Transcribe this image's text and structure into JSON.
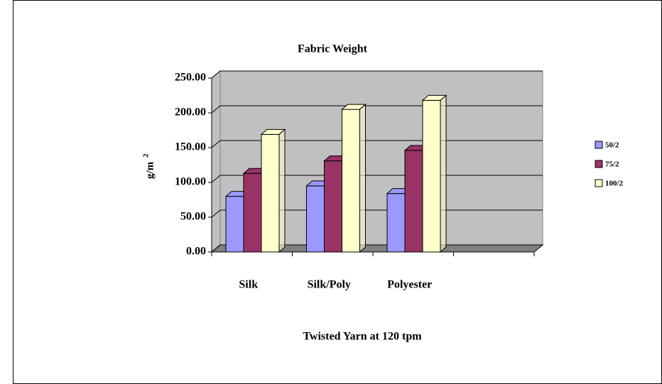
{
  "chart_data": {
    "type": "bar3d",
    "title": "Fabric Weight",
    "x_label": "Twisted Yarn at 120 tpm",
    "y_label": "g/m",
    "y_label_superscript": "2",
    "categories": [
      "Silk",
      "Silk/Poly",
      "Polyester",
      null
    ],
    "series": [
      {
        "name": "50/2",
        "color": "#9999ff",
        "values": [
          80,
          95,
          84,
          null
        ]
      },
      {
        "name": "75/2",
        "color": "#993366",
        "values": [
          113,
          131,
          146,
          null
        ]
      },
      {
        "name": "100/2",
        "color": "#ffffcc",
        "values": [
          169,
          205,
          218,
          null
        ]
      }
    ],
    "ylim": [
      0,
      250
    ],
    "yticks": [
      {
        "value": 0,
        "label": "0.00"
      },
      {
        "value": 50,
        "label": "50.00"
      },
      {
        "value": 100,
        "label": "100.00"
      },
      {
        "value": 150,
        "label": "150.00"
      },
      {
        "value": 200,
        "label": "200.00"
      },
      {
        "value": 250,
        "label": "250.00"
      }
    ],
    "grid": true,
    "legend": "right",
    "wall_color": "#c0c0c0"
  }
}
